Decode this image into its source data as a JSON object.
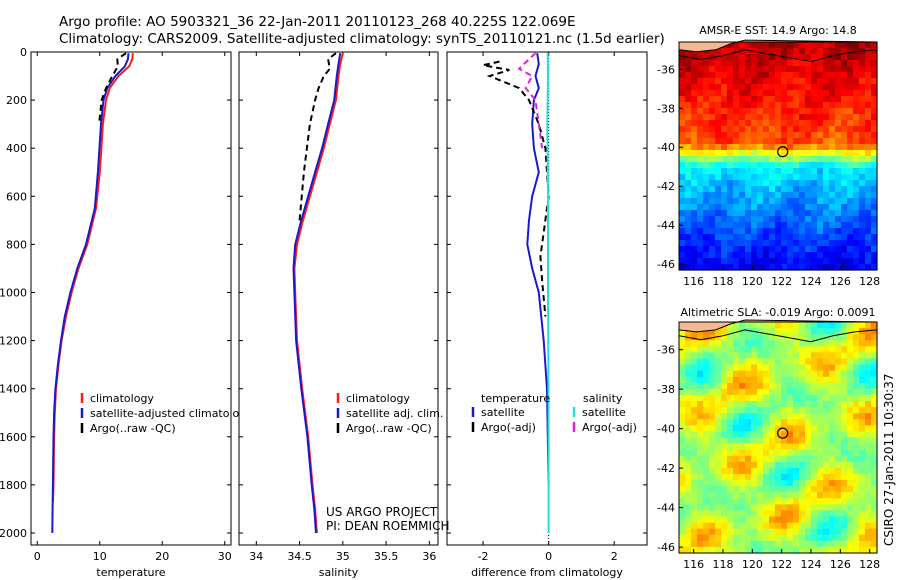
{
  "header": {
    "line1": "Argo profile: AO 5903321_36 22-Jan-2011 20110123_268 40.225S 122.069E",
    "line2": "Climatology: CARS2009. Satellite-adjusted climatology: synTS_20110121.nc (1.5d earlier)"
  },
  "side_label": "CSIRO 27-Jan-2011 10:30:37",
  "project_label": {
    "line1": "US ARGO PROJECT",
    "line2": "PI: DEAN ROEMMICH"
  },
  "colors": {
    "climatology": "#ff1a1a",
    "satellite": "#1a1acc",
    "argo": "#000000",
    "sat_salinity": "#22e0e0",
    "argo_salinity": "#e020e0",
    "land": "#f5b890"
  },
  "chart_data": [
    {
      "type": "line",
      "id": "temperature",
      "xlabel": "temperature",
      "xlim": [
        -1,
        31
      ],
      "ylim": [
        2050,
        0
      ],
      "xticks": [
        0,
        10,
        20,
        30
      ],
      "yticks": [
        0,
        200,
        400,
        600,
        800,
        1000,
        1200,
        1400,
        1600,
        1800,
        2000
      ],
      "legend": [
        "climatology",
        "satellite-adjusted climatology",
        "Argo(..raw -QC)"
      ],
      "legend_position": "lower-right",
      "series": [
        {
          "name": "climatology",
          "style": "solid",
          "color": "#ff1a1a",
          "x": [
            15.3,
            15.2,
            14.7,
            13.0,
            11.6,
            11.0,
            10.5,
            10.0,
            9.4,
            8.0,
            6.6,
            5.5,
            4.6,
            3.9,
            3.4,
            3.0,
            2.8,
            2.7,
            2.6,
            2.5
          ],
          "y": [
            5,
            30,
            60,
            100,
            150,
            200,
            300,
            500,
            650,
            800,
            900,
            1000,
            1100,
            1200,
            1300,
            1400,
            1500,
            1600,
            1800,
            1870
          ]
        },
        {
          "name": "satellite",
          "style": "solid",
          "color": "#1a1acc",
          "x": [
            14.6,
            14.5,
            14.0,
            12.5,
            11.2,
            10.6,
            10.2,
            9.7,
            9.2,
            7.8,
            6.4,
            5.3,
            4.4,
            3.8,
            3.3,
            2.9,
            2.7,
            2.6,
            2.5,
            2.4
          ],
          "y": [
            5,
            30,
            60,
            100,
            150,
            200,
            300,
            500,
            650,
            800,
            900,
            1000,
            1100,
            1200,
            1300,
            1400,
            1500,
            1600,
            1800,
            2000
          ]
        },
        {
          "name": "Argo",
          "style": "dashed",
          "color": "#000000",
          "x": [
            14.2,
            12.8,
            12.9,
            12.0,
            11.0,
            10.3,
            9.9
          ],
          "y": [
            5,
            30,
            60,
            100,
            150,
            200,
            300
          ]
        }
      ]
    },
    {
      "type": "line",
      "id": "salinity",
      "xlabel": "salinity",
      "xlim": [
        33.8,
        36.1
      ],
      "ylim": [
        2050,
        0
      ],
      "xticks": [
        34,
        34.5,
        35,
        35.5,
        36
      ],
      "legend": [
        "climatology",
        "satellite adj. clim.",
        "Argo(..raw -QC)"
      ],
      "legend_position": "lower-right",
      "series": [
        {
          "name": "climatology",
          "style": "solid",
          "color": "#ff1a1a",
          "x": [
            35.0,
            34.97,
            34.95,
            34.92,
            34.85,
            34.78,
            34.7,
            34.62,
            34.54,
            34.47,
            34.44,
            34.45,
            34.47,
            34.53,
            34.6,
            34.65,
            34.68,
            34.7
          ],
          "y": [
            5,
            50,
            100,
            200,
            300,
            400,
            500,
            600,
            700,
            800,
            900,
            1000,
            1200,
            1400,
            1600,
            1800,
            1900,
            2000
          ]
        },
        {
          "name": "satellite",
          "style": "solid",
          "color": "#1a1acc",
          "x": [
            34.97,
            34.95,
            34.93,
            34.9,
            34.83,
            34.76,
            34.68,
            34.6,
            34.52,
            34.45,
            34.43,
            34.44,
            34.46,
            34.52,
            34.59,
            34.64,
            34.67,
            34.69
          ],
          "y": [
            5,
            50,
            100,
            200,
            300,
            400,
            500,
            600,
            700,
            800,
            900,
            1000,
            1200,
            1400,
            1600,
            1800,
            1900,
            2000
          ]
        },
        {
          "name": "Argo",
          "style": "dashed",
          "color": "#000000",
          "x": [
            34.92,
            34.83,
            34.85,
            34.78,
            34.72,
            34.68,
            34.62,
            34.55,
            34.5
          ],
          "y": [
            5,
            30,
            70,
            100,
            150,
            200,
            300,
            500,
            700
          ]
        }
      ]
    },
    {
      "type": "line",
      "id": "difference",
      "xlabel": "difference from climatology",
      "xlim": [
        -3.1,
        3.0
      ],
      "ylim": [
        2050,
        0
      ],
      "xticks": [
        -2,
        0,
        2
      ],
      "legend_temperature_header": "temperature",
      "legend_salinity_header": "salinity",
      "legend": [
        "satellite",
        "Argo(-adj)",
        "satellite",
        "Argo(-adj)"
      ],
      "legend_position": "lower-center",
      "series": [
        {
          "name": "temperature satellite",
          "style": "solid",
          "color": "#1a1acc",
          "x": [
            -0.35,
            -0.3,
            -0.4,
            -0.3,
            -0.45,
            -0.5,
            -0.45,
            -0.3,
            -0.5,
            -0.6,
            -0.65,
            -0.5,
            -0.3,
            -0.15,
            -0.05,
            0.0
          ],
          "y": [
            5,
            50,
            100,
            150,
            200,
            300,
            400,
            500,
            600,
            700,
            800,
            900,
            1000,
            1200,
            1400,
            1800
          ]
        },
        {
          "name": "temperature Argo",
          "style": "dashed",
          "color": "#000000",
          "x": [
            -1.5,
            -2.0,
            -1.2,
            -1.8,
            -0.9,
            -0.6,
            -0.3,
            -0.1,
            -0.05,
            0.0,
            -0.15,
            -0.25,
            -0.2,
            -0.1
          ],
          "y": [
            40,
            55,
            75,
            100,
            150,
            200,
            300,
            400,
            500,
            600,
            750,
            850,
            950,
            1100
          ]
        },
        {
          "name": "salinity satellite",
          "style": "solid",
          "color": "#22e0e0",
          "x": [
            -0.03,
            -0.02,
            -0.04,
            -0.02,
            -0.02,
            0.0,
            0.0
          ],
          "y": [
            5,
            100,
            300,
            600,
            1000,
            1500,
            2000
          ]
        },
        {
          "name": "salinity Argo",
          "style": "dashed",
          "color": "#e020e0",
          "x": [
            -0.4,
            -0.6,
            -0.9,
            -0.5,
            -0.7,
            -0.4,
            -0.3,
            -0.2
          ],
          "y": [
            5,
            30,
            70,
            100,
            150,
            200,
            300,
            400
          ]
        }
      ]
    },
    {
      "type": "heatmap",
      "id": "sst_map",
      "title": "AMSR-E SST: 14.9 Argo: 14.8",
      "xlim": [
        115,
        128.5
      ],
      "ylim": [
        -46.3,
        -34.6
      ],
      "xticks": [
        116,
        118,
        120,
        122,
        124,
        126,
        128
      ],
      "yticks": [
        -36,
        -38,
        -40,
        -42,
        -44,
        -46
      ],
      "marker": {
        "lon": 122.07,
        "lat": -40.23
      },
      "value_range": [
        10,
        20
      ],
      "description_values": {
        "north": 19.5,
        "south": 11
      }
    },
    {
      "type": "heatmap",
      "id": "sla_map",
      "title": "Altimetric SLA: -0.019 Argo: 0.0091",
      "xlim": [
        115,
        128.5
      ],
      "ylim": [
        -46.3,
        -34.6
      ],
      "xticks": [
        116,
        118,
        120,
        122,
        124,
        126,
        128
      ],
      "yticks": [
        -36,
        -38,
        -40,
        -42,
        -44,
        -46
      ],
      "marker": {
        "lon": 122.07,
        "lat": -40.23
      }
    }
  ]
}
